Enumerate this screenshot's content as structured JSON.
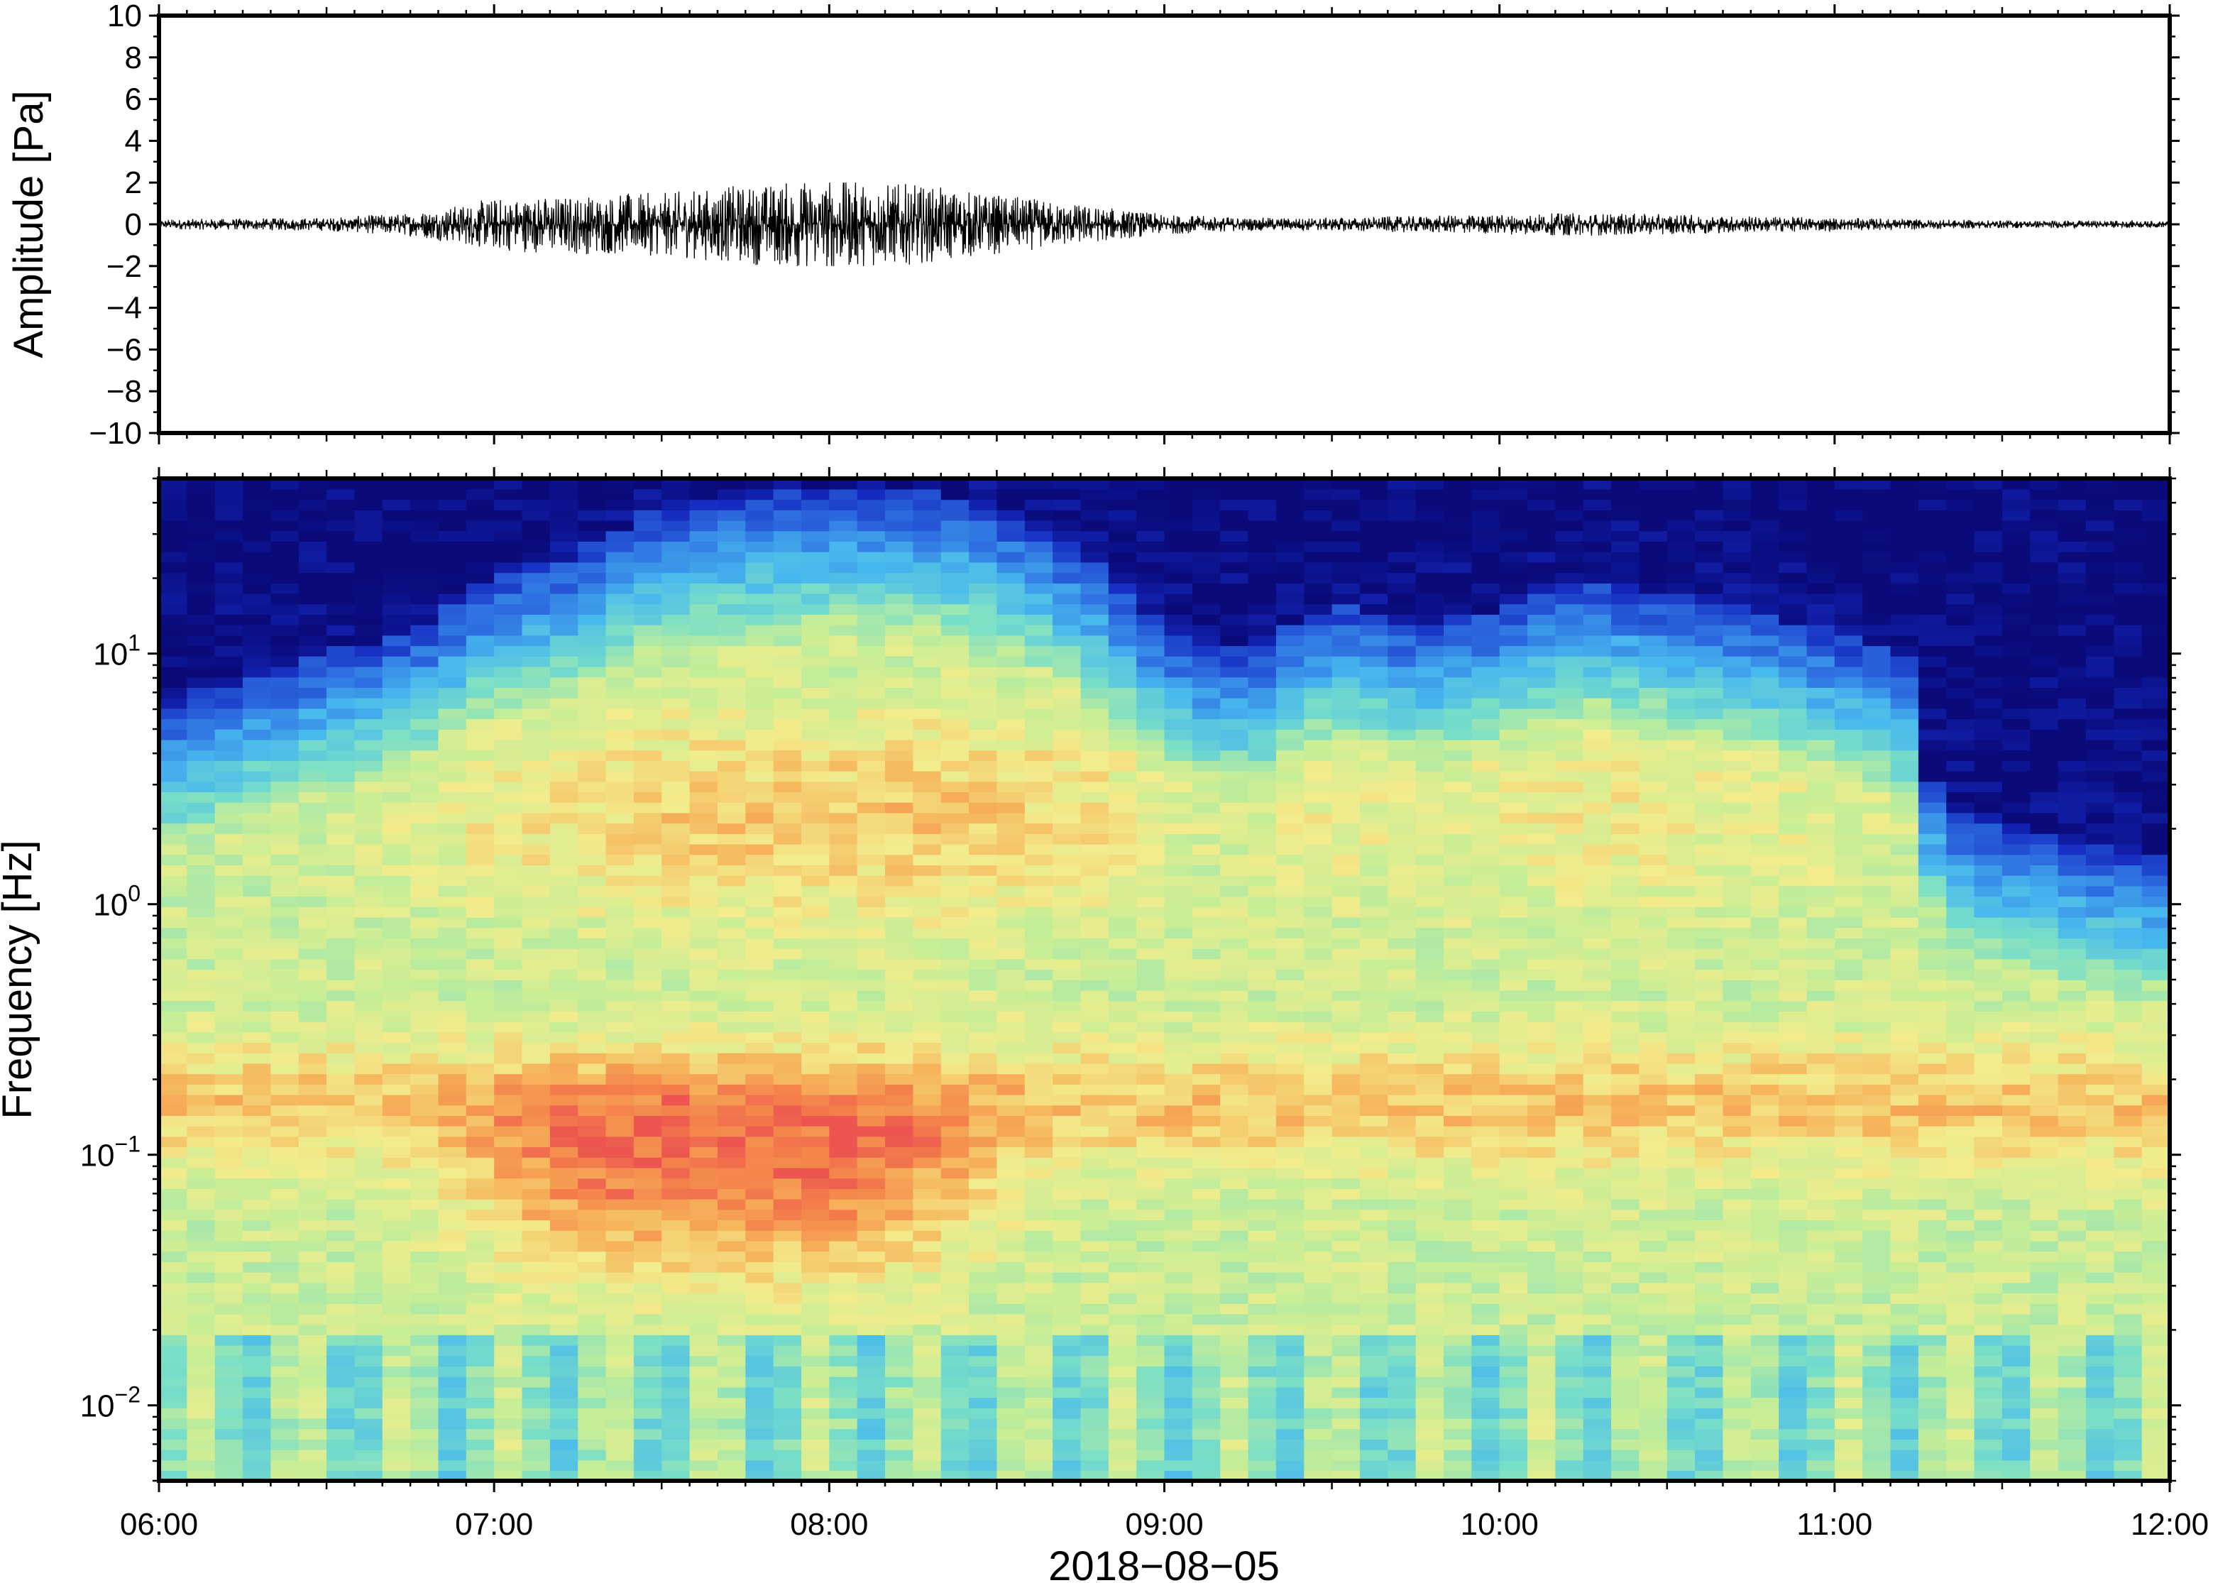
{
  "chart_data": [
    {
      "type": "line",
      "ylabel": "Amplitude [Pa]",
      "ylim": [
        -10,
        10
      ],
      "yticks": [
        10,
        8,
        6,
        4,
        2,
        0,
        -2,
        -4,
        -6,
        -8,
        -10
      ],
      "ytick_labels": [
        "10",
        "8",
        "6",
        "4",
        "2",
        "0",
        "−2",
        "−4",
        "−6",
        "−8",
        "−10"
      ],
      "x_range": [
        "06:00",
        "12:00"
      ],
      "series": [
        {
          "x_hours": [
            6.0,
            6.5,
            6.75,
            6.9,
            7.0,
            7.25,
            7.5,
            7.75,
            8.0,
            8.25,
            8.5,
            8.75,
            9.0,
            9.25,
            9.5,
            9.75,
            10.0,
            10.25,
            10.5,
            10.75,
            11.0,
            11.25,
            11.5,
            12.0
          ],
          "envelope_pa": [
            0.15,
            0.2,
            0.35,
            0.6,
            0.8,
            0.9,
            0.95,
            1.2,
            1.4,
            1.2,
            0.9,
            0.6,
            0.3,
            0.2,
            0.2,
            0.25,
            0.3,
            0.35,
            0.3,
            0.25,
            0.2,
            0.15,
            0.12,
            0.1
          ],
          "peak_pa": [
            2.0,
            -1.9
          ]
        }
      ],
      "grid": false
    },
    {
      "type": "heatmap",
      "ylabel": "Frequency [Hz]",
      "xlabel": "2018−08−05",
      "yscale": "log",
      "ylim": [
        0.005,
        50
      ],
      "yticks": [
        0.01,
        0.1,
        1,
        10
      ],
      "ytick_labels": [
        {
          "base": "10",
          "exp": "−2"
        },
        {
          "base": "10",
          "exp": "−1"
        },
        {
          "base": "10",
          "exp": "0"
        },
        {
          "base": "10",
          "exp": "1"
        }
      ],
      "x_ticks": [
        "06:00",
        "07:00",
        "08:00",
        "09:00",
        "10:00",
        "11:00",
        "12:00"
      ],
      "colormap": "jet (dark blue → cyan → yellow → red)",
      "colors": {
        "low": "#0a0a7a",
        "mid_low": "#47b8ee",
        "mid": "#f3ec8c",
        "high": "#ec5550"
      },
      "energy_top_hz": [
        [
          6.0,
          6.0
        ],
        [
          6.25,
          8.0
        ],
        [
          6.5,
          10.0
        ],
        [
          6.75,
          12.0
        ],
        [
          7.0,
          20.0
        ],
        [
          7.25,
          25.0
        ],
        [
          7.5,
          38.0
        ],
        [
          7.75,
          42.0
        ],
        [
          8.0,
          45.0
        ],
        [
          8.25,
          45.0
        ],
        [
          8.5,
          38.0
        ],
        [
          8.75,
          25.0
        ],
        [
          9.0,
          12.0
        ],
        [
          9.25,
          10.0
        ],
        [
          9.5,
          16.0
        ],
        [
          9.75,
          13.0
        ],
        [
          10.0,
          15.0
        ],
        [
          10.25,
          20.0
        ],
        [
          10.5,
          17.0
        ],
        [
          10.75,
          15.0
        ],
        [
          11.0,
          12.0
        ],
        [
          11.2,
          10.0
        ],
        [
          11.3,
          2.5
        ],
        [
          11.5,
          2.0
        ],
        [
          12.0,
          1.5
        ]
      ],
      "hot_band": {
        "hz_range": [
          0.03,
          0.2
        ],
        "hours_range": [
          6.7,
          8.7
        ]
      },
      "grid": false
    }
  ]
}
